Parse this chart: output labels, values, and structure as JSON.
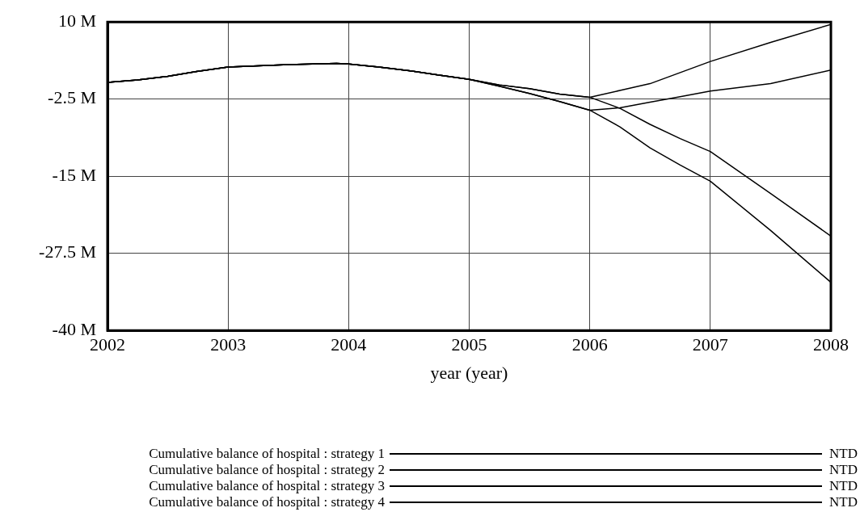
{
  "chart_data": {
    "type": "line",
    "xlabel": "year (year)",
    "xlim": [
      2002,
      2008
    ],
    "xticks": [
      2002,
      2003,
      2004,
      2005,
      2006,
      2007,
      2008
    ],
    "ylim": [
      -40,
      10
    ],
    "yticks": [
      {
        "value": 10,
        "label": "10 M"
      },
      {
        "value": -2.5,
        "label": "-2.5 M"
      },
      {
        "value": -15,
        "label": "-15 M"
      },
      {
        "value": -27.5,
        "label": "-27.5 M"
      },
      {
        "value": -40,
        "label": "-40 M"
      }
    ],
    "x": [
      2002,
      2002.25,
      2002.5,
      2002.75,
      2003,
      2003.5,
      2003.9,
      2004,
      2004.25,
      2004.5,
      2004.75,
      2005,
      2005.25,
      2005.5,
      2005.75,
      2006,
      2006.25,
      2006.5,
      2006.75,
      2007,
      2007.5,
      2008
    ],
    "series": [
      {
        "name": "Cumulative balance of hospital : strategy 1",
        "color": "#000000",
        "values": [
          0.2,
          0.6,
          1.2,
          2.0,
          2.7,
          3.1,
          3.3,
          3.2,
          2.7,
          2.1,
          1.4,
          0.7,
          -0.4,
          -1.6,
          -2.9,
          -4.3,
          -7.0,
          -10.4,
          -13.2,
          -15.8,
          -23.8,
          -32.2
        ]
      },
      {
        "name": "Cumulative balance of hospital : strategy 2",
        "color": "#000000",
        "values": [
          0.2,
          0.6,
          1.2,
          2.0,
          2.7,
          3.1,
          3.3,
          3.2,
          2.7,
          2.1,
          1.4,
          0.7,
          -0.2,
          -0.8,
          -1.7,
          -2.2,
          -4.0,
          -6.6,
          -8.9,
          -11.0,
          -17.8,
          -24.7
        ]
      },
      {
        "name": "Cumulative balance of hospital : strategy 3",
        "color": "#000000",
        "values": [
          0.2,
          0.6,
          1.2,
          2.0,
          2.7,
          3.1,
          3.3,
          3.2,
          2.7,
          2.1,
          1.4,
          0.7,
          -0.4,
          -1.6,
          -2.9,
          -4.3,
          -3.9,
          -3.0,
          -2.1,
          -1.2,
          0.0,
          2.2
        ]
      },
      {
        "name": "Cumulative balance of hospital : strategy 4",
        "color": "#000000",
        "values": [
          0.2,
          0.6,
          1.2,
          2.0,
          2.7,
          3.1,
          3.3,
          3.2,
          2.7,
          2.1,
          1.4,
          0.7,
          -0.2,
          -0.8,
          -1.7,
          -2.2,
          -1.1,
          0.0,
          1.8,
          3.6,
          6.7,
          9.6
        ]
      }
    ],
    "grid": true,
    "legend": "bottom",
    "marker": "none",
    "line_style": "solid",
    "annotations": [
      "NTD",
      "NTD",
      "NTD",
      "NTD"
    ]
  }
}
